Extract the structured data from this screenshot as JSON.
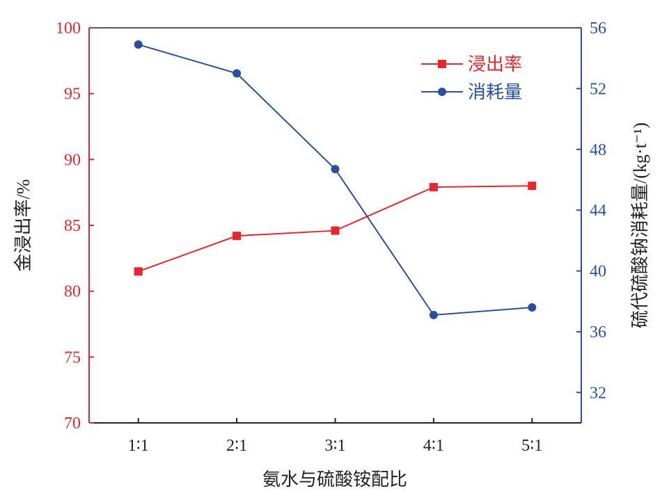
{
  "chart_data": {
    "type": "line",
    "xlabel": "氨水与硫酸铵配比",
    "categories": [
      "1∶1",
      "2∶1",
      "3∶1",
      "4∶1",
      "5∶1"
    ],
    "y_left": {
      "label": "金浸出率/%",
      "ylim": [
        70,
        100
      ],
      "ticks": [
        70,
        75,
        80,
        85,
        90,
        95,
        100
      ],
      "color": "#e8262b"
    },
    "y_right": {
      "label": "硫代硫酸钠消耗量/(kg·t⁻¹)",
      "ylim": [
        30,
        56
      ],
      "ticks": [
        32,
        36,
        40,
        44,
        48,
        52,
        56
      ],
      "color": "#2a4fa0"
    },
    "series": [
      {
        "name": "浸出率",
        "axis": "left",
        "marker": "square",
        "color": "#e8262b",
        "values": [
          81.5,
          84.2,
          84.6,
          87.9,
          88.0
        ]
      },
      {
        "name": "消耗量",
        "axis": "right",
        "marker": "circle",
        "color": "#2a4fa0",
        "values": [
          54.9,
          53.0,
          46.7,
          37.1,
          37.6
        ]
      }
    ],
    "legend": "top-right",
    "grid": false
  }
}
